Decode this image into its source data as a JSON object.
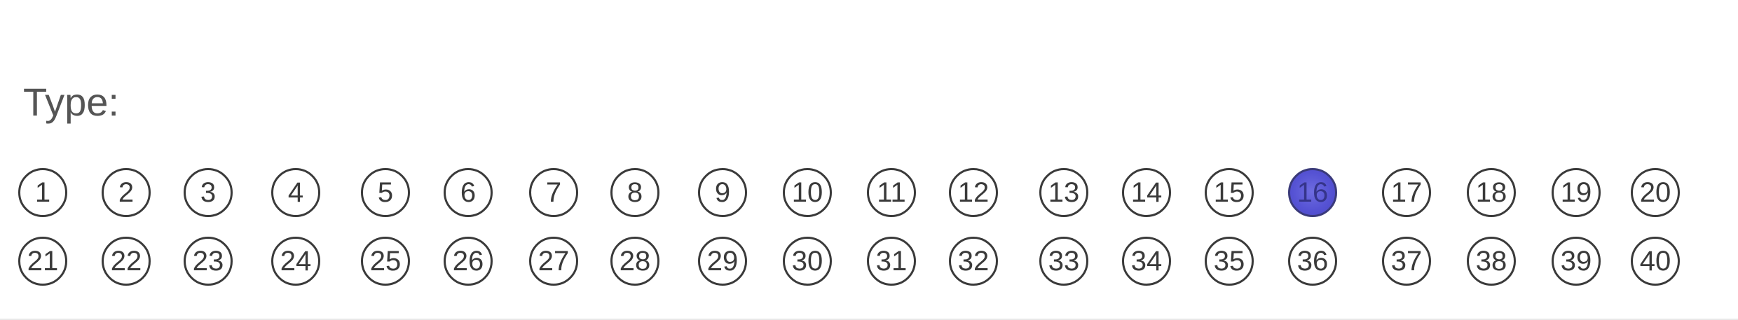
{
  "form": {
    "label": "Type:",
    "selected": 16,
    "rows": [
      [
        1,
        2,
        3,
        4,
        5,
        6,
        7,
        8,
        9,
        10,
        11,
        12,
        13,
        14,
        15,
        16,
        17,
        18,
        19,
        20
      ],
      [
        21,
        22,
        23,
        24,
        25,
        26,
        27,
        28,
        29,
        30,
        31,
        32,
        33,
        34,
        35,
        36,
        37,
        38,
        39,
        40
      ]
    ],
    "fill_color": "#5653d4",
    "ink_color": "#3a3a3a"
  }
}
